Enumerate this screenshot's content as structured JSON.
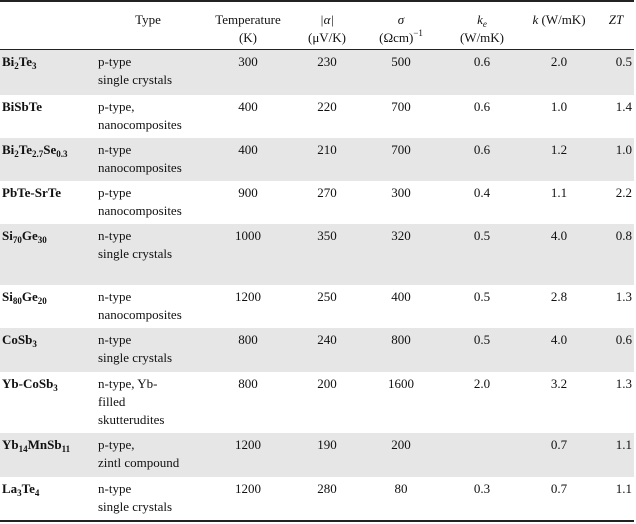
{
  "headers": {
    "material": "",
    "type": "Type",
    "temperature_1": "Temperature",
    "temperature_2": "(K)",
    "alpha_symbol": "|α|",
    "alpha_unit": "(μV/K)",
    "sigma_symbol": "σ",
    "sigma_unit_base": "(Ωcm)",
    "sigma_unit_exp": "−1",
    "ke_base": "k",
    "ke_sub": "e",
    "ke_unit": "(W/mK)",
    "k_symbol": "k",
    "k_unit": "(W/mK)",
    "zt": "ZT"
  },
  "rows": [
    {
      "name": [
        [
          "Bi",
          ""
        ],
        [
          "2",
          "sub"
        ],
        [
          "Te",
          ""
        ],
        [
          "3",
          "sub"
        ]
      ],
      "type1": "p-type",
      "type2": "single crystals",
      "type3": "",
      "temperature": "300",
      "alpha": "230",
      "sigma": "500",
      "ke": "0.6",
      "k": "2.0",
      "zt": "0.5",
      "shaded": true,
      "height": 46
    },
    {
      "name": [
        [
          "BiSbTe",
          ""
        ]
      ],
      "type1": "p-type,",
      "type2": "nanocomposites",
      "type3": "",
      "temperature": "400",
      "alpha": "220",
      "sigma": "700",
      "ke": "0.6",
      "k": "1.0",
      "zt": "1.4",
      "shaded": false,
      "height": 43
    },
    {
      "name": [
        [
          "Bi",
          ""
        ],
        [
          "2",
          "sub"
        ],
        [
          "Te",
          ""
        ],
        [
          "2.7",
          "sub"
        ],
        [
          "Se",
          ""
        ],
        [
          "0.3",
          "sub"
        ]
      ],
      "type1": "n-type",
      "type2": "nanocomposites",
      "type3": "",
      "temperature": "400",
      "alpha": "210",
      "sigma": "700",
      "ke": "0.6",
      "k": "1.2",
      "zt": "1.0",
      "shaded": true,
      "height": 43
    },
    {
      "name": [
        [
          "PbTe-SrTe",
          ""
        ]
      ],
      "type1": "p-type",
      "type2": "nanocomposites",
      "type3": "",
      "temperature": "900",
      "alpha": "270",
      "sigma": "300",
      "ke": "0.4",
      "k": "1.1",
      "zt": "2.2",
      "shaded": false,
      "height": 43
    },
    {
      "name": [
        [
          "Si",
          ""
        ],
        [
          "70",
          "sub"
        ],
        [
          "Ge",
          ""
        ],
        [
          "30",
          "sub"
        ]
      ],
      "type1": "n-type",
      "type2": "single crystals",
      "type3": "",
      "temperature": "1000",
      "alpha": "350",
      "sigma": "320",
      "ke": "0.5",
      "k": "4.0",
      "zt": "0.8",
      "shaded": true,
      "height": 61
    },
    {
      "name": [
        [
          "Si",
          ""
        ],
        [
          "80",
          "sub"
        ],
        [
          "Ge",
          ""
        ],
        [
          "20",
          "sub"
        ]
      ],
      "type1": "n-type",
      "type2": "nanocomposites",
      "type3": "",
      "temperature": "1200",
      "alpha": "250",
      "sigma": "400",
      "ke": "0.5",
      "k": "2.8",
      "zt": "1.3",
      "shaded": false,
      "height": 43
    },
    {
      "name": [
        [
          "CoSb",
          ""
        ],
        [
          "3",
          "sub"
        ]
      ],
      "type1": "n-type",
      "type2": "single crystals",
      "type3": "",
      "temperature": "800",
      "alpha": "240",
      "sigma": "800",
      "ke": "0.5",
      "k": "4.0",
      "zt": "0.6",
      "shaded": true,
      "height": 44
    },
    {
      "name": [
        [
          "Yb-CoSb",
          ""
        ],
        [
          "3",
          "sub"
        ]
      ],
      "type1": "n-type, Yb-",
      "type2": "filled",
      "type3": "skutterudites",
      "temperature": "800",
      "alpha": "200",
      "sigma": "1600",
      "ke": "2.0",
      "k": "3.2",
      "zt": "1.3",
      "shaded": false,
      "height": 61
    },
    {
      "name": [
        [
          "Yb",
          ""
        ],
        [
          "14",
          "sub"
        ],
        [
          "MnSb",
          ""
        ],
        [
          "11",
          "sub"
        ]
      ],
      "type1": "p-type,",
      "type2": "zintl compound",
      "type3": "",
      "temperature": "1200",
      "alpha": "190",
      "sigma": "200",
      "ke": "",
      "k": "0.7",
      "zt": "1.1",
      "shaded": true,
      "height": 44
    },
    {
      "name": [
        [
          "La",
          ""
        ],
        [
          "3",
          "sub"
        ],
        [
          "Te",
          ""
        ],
        [
          "4",
          "sub"
        ]
      ],
      "type1": "n-type",
      "type2": "single crystals",
      "type3": "",
      "temperature": "1200",
      "alpha": "280",
      "sigma": "80",
      "ke": "0.3",
      "k": "0.7",
      "zt": "1.1",
      "shaded": false,
      "height": 44
    }
  ]
}
